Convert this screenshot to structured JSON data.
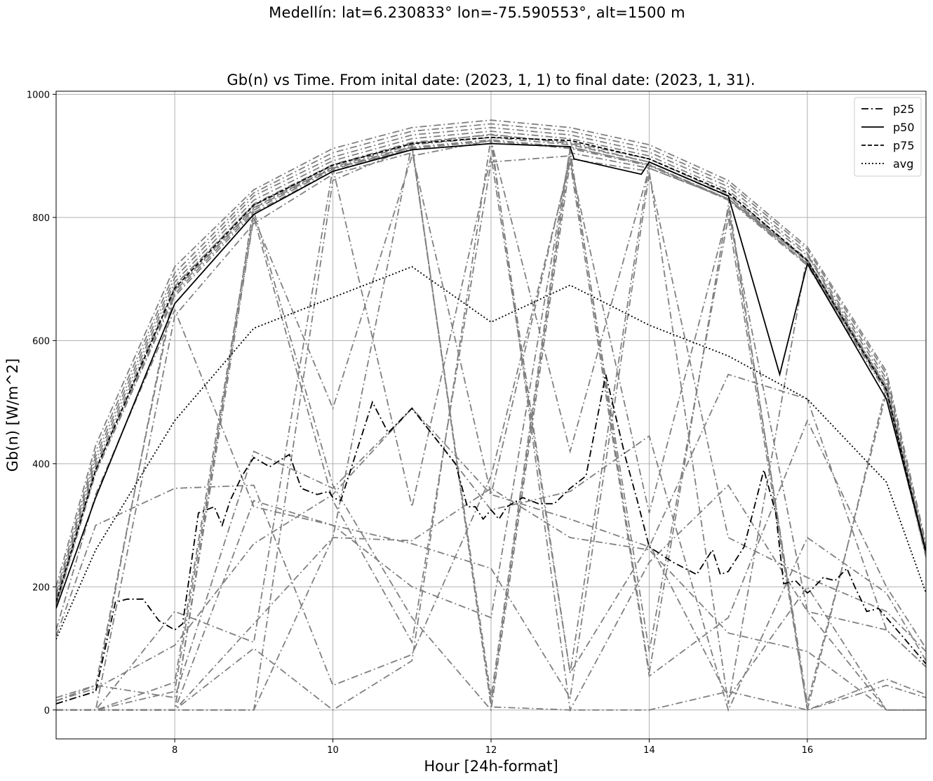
{
  "figure": {
    "suptitle": "Medellín: lat=6.230833° lon=-75.590553°, alt=1500 m"
  },
  "chart_data": {
    "type": "line",
    "title": "Gb(n) vs Time. From inital date: (2023, 1, 1) to final date: (2023, 1, 31).",
    "xlabel": "Hour [24h-format]",
    "ylabel": "Gb(n) [W/m^2]",
    "xlim": [
      6.5,
      17.5
    ],
    "ylim": [
      -47,
      1005
    ],
    "xticks": [
      8,
      10,
      12,
      14,
      16
    ],
    "yticks": [
      0,
      200,
      400,
      600,
      800,
      1000
    ],
    "grid": true,
    "legend_position": "top-right",
    "legend": [
      {
        "label": "p25",
        "style": "dashdot"
      },
      {
        "label": "p50",
        "style": "solid"
      },
      {
        "label": "p75",
        "style": "dashed"
      },
      {
        "label": "avg",
        "style": "dotted"
      }
    ],
    "colors": {
      "daily": "#808080",
      "stats": "#000000",
      "grid": "#b0b0b0"
    },
    "x": [
      6.5,
      7,
      8,
      9,
      10,
      11,
      12,
      13,
      14,
      15,
      16,
      17,
      17.5
    ],
    "daily_series": [
      {
        "values": [
          190,
          420,
          710,
          840,
          905,
          940,
          952,
          940,
          912,
          855,
          748,
          545,
          265
        ]
      },
      {
        "values": [
          185,
          412,
          702,
          835,
          898,
          934,
          946,
          934,
          906,
          850,
          742,
          538,
          260
        ]
      },
      {
        "values": [
          180,
          405,
          695,
          828,
          892,
          928,
          940,
          928,
          900,
          844,
          738,
          532,
          258
        ]
      },
      {
        "values": [
          175,
          398,
          688,
          822,
          886,
          922,
          934,
          922,
          895,
          838,
          732,
          526,
          255
        ]
      },
      {
        "values": [
          172,
          392,
          682,
          816,
          882,
          918,
          930,
          918,
          890,
          834,
          728,
          522,
          252
        ]
      },
      {
        "values": [
          170,
          388,
          676,
          812,
          878,
          914,
          926,
          914,
          886,
          830,
          724,
          518,
          250
        ]
      },
      {
        "values": [
          168,
          385,
          672,
          808,
          875,
          912,
          924,
          912,
          884,
          828,
          722,
          515,
          248
        ]
      },
      {
        "values": [
          200,
          430,
          720,
          845,
          912,
          946,
          958,
          946,
          918,
          860,
          752,
          550,
          270
        ]
      },
      {
        "values": [
          10,
          30,
          690,
          820,
          885,
          920,
          935,
          920,
          890,
          835,
          730,
          525,
          255
        ]
      },
      {
        "values": [
          15,
          40,
          680,
          815,
          880,
          915,
          20,
          915,
          885,
          830,
          725,
          520,
          250
        ]
      },
      {
        "values": [
          0,
          0,
          0,
          820,
          880,
          910,
          920,
          60,
          885,
          830,
          730,
          520,
          255
        ]
      },
      {
        "values": [
          0,
          0,
          0,
          0,
          860,
          915,
          10,
          905,
          880,
          830,
          730,
          525,
          250
        ]
      },
      {
        "values": [
          0,
          0,
          640,
          790,
          870,
          905,
          350,
          895,
          875,
          10,
          740,
          520,
          255
        ]
      },
      {
        "values": [
          0,
          0,
          0,
          800,
          490,
          900,
          925,
          420,
          880,
          830,
          0,
          525,
          250
        ]
      },
      {
        "values": [
          130,
          350,
          650,
          330,
          300,
          200,
          150,
          910,
          60,
          820,
          10,
          515,
          260
        ]
      },
      {
        "values": [
          120,
          300,
          360,
          365,
          40,
          90,
          380,
          890,
          320,
          810,
          160,
          0,
          0
        ]
      },
      {
        "values": [
          20,
          40,
          20,
          420,
          360,
          490,
          325,
          355,
          445,
          0,
          280,
          190,
          80
        ]
      },
      {
        "values": [
          15,
          35,
          105,
          270,
          350,
          490,
          350,
          310,
          265,
          545,
          505,
          130,
          70
        ]
      },
      {
        "values": [
          0,
          0,
          0,
          340,
          300,
          270,
          230,
          20,
          870,
          280,
          215,
          160,
          95
        ]
      },
      {
        "values": [
          0,
          0,
          0,
          140,
          280,
          275,
          360,
          280,
          260,
          125,
          95,
          0,
          0
        ]
      },
      {
        "values": [
          0,
          0,
          0,
          100,
          0,
          80,
          930,
          0,
          240,
          365,
          160,
          130,
          70
        ]
      },
      {
        "values": [
          0,
          0,
          30,
          800,
          340,
          110,
          890,
          900,
          95,
          800,
          0,
          40,
          20
        ]
      },
      {
        "values": [
          0,
          0,
          45,
          810,
          365,
          150,
          0,
          890,
          55,
          150,
          470,
          200,
          100
        ]
      },
      {
        "values": [
          0,
          0,
          160,
          110,
          880,
          330,
          900,
          60,
          270,
          20,
          200,
          0,
          0
        ]
      },
      {
        "values": [
          0,
          0,
          0,
          0,
          280,
          920,
          5,
          0,
          0,
          30,
          0,
          50,
          25
        ]
      }
    ],
    "series": [
      {
        "name": "p25",
        "style": "dashdot",
        "x": [
          6.5,
          7,
          7.25,
          7.4,
          7.6,
          7.8,
          8,
          8.1,
          8.2,
          8.3,
          8.5,
          8.6,
          8.7,
          8.85,
          9,
          9.2,
          9.45,
          9.6,
          9.8,
          9.95,
          10,
          10.1,
          10.25,
          10.5,
          10.7,
          11,
          11.55,
          11.7,
          11.8,
          11.9,
          12,
          12.1,
          12.2,
          12.4,
          12.6,
          12.8,
          13,
          13.2,
          13.45,
          13.7,
          13.85,
          14,
          14.3,
          14.6,
          14.8,
          14.9,
          15,
          15.2,
          15.45,
          15.6,
          15.7,
          15.85,
          16,
          16.05,
          16.2,
          16.35,
          16.5,
          16.6,
          16.75,
          16.9,
          17,
          17.5
        ],
        "y": [
          10,
          30,
          175,
          180,
          180,
          145,
          130,
          140,
          230,
          320,
          330,
          300,
          340,
          380,
          410,
          395,
          415,
          360,
          350,
          355,
          345,
          340,
          400,
          500,
          450,
          490,
          400,
          330,
          330,
          310,
          325,
          310,
          330,
          345,
          335,
          335,
          360,
          380,
          545,
          410,
          340,
          265,
          240,
          220,
          260,
          220,
          225,
          265,
          390,
          320,
          205,
          210,
          190,
          195,
          215,
          210,
          230,
          200,
          160,
          165,
          150,
          75
        ]
      },
      {
        "name": "p50",
        "style": "solid",
        "x": [
          6.5,
          7,
          8,
          9,
          10,
          11,
          12,
          13,
          13.05,
          13.9,
          14,
          15,
          15.65,
          16,
          17,
          17.5
        ],
        "y": [
          165,
          345,
          660,
          805,
          875,
          910,
          920,
          915,
          895,
          870,
          890,
          835,
          545,
          725,
          505,
          258
        ]
      },
      {
        "name": "p75",
        "style": "dashed",
        "x": [
          6.5,
          7,
          8,
          9,
          10,
          11,
          12,
          13,
          14,
          15,
          16,
          17,
          17.5
        ],
        "y": [
          175,
          390,
          685,
          820,
          885,
          920,
          930,
          925,
          895,
          840,
          730,
          520,
          255
        ]
      },
      {
        "name": "avg",
        "style": "dotted",
        "x": [
          6.5,
          7,
          8,
          9,
          10,
          11,
          12,
          13,
          14,
          15,
          16,
          17,
          17.5
        ],
        "y": [
          115,
          260,
          470,
          620,
          670,
          720,
          630,
          690,
          625,
          575,
          505,
          370,
          190
        ]
      }
    ]
  }
}
